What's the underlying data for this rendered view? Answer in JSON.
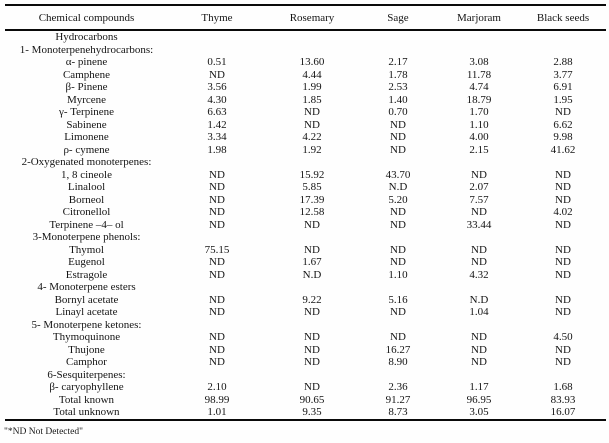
{
  "table": {
    "columns": [
      "Chemical compounds",
      "Thyme",
      "Rosemary",
      "Sage",
      "Marjoram",
      "Black seeds"
    ],
    "rows": [
      {
        "type": "section",
        "label": "Hydrocarbons"
      },
      {
        "type": "section",
        "label": "1- Monoterpenehydrocarbons:"
      },
      {
        "type": "compound",
        "label": "α- pinene",
        "values": [
          "0.51",
          "13.60",
          "2.17",
          "3.08",
          "2.88"
        ]
      },
      {
        "type": "compound",
        "label": "Camphene",
        "values": [
          "ND",
          "4.44",
          "1.78",
          "11.78",
          "3.77"
        ]
      },
      {
        "type": "compound",
        "label": "β- Pinene",
        "values": [
          "3.56",
          "1.99",
          "2.53",
          "4.74",
          "6.91"
        ]
      },
      {
        "type": "compound",
        "label": "Myrcene",
        "values": [
          "4.30",
          "1.85",
          "1.40",
          "18.79",
          "1.95"
        ]
      },
      {
        "type": "compound",
        "label": "γ- Terpinene",
        "values": [
          "6.63",
          "ND",
          "0.70",
          "1.70",
          "ND"
        ]
      },
      {
        "type": "compound",
        "label": "Sabinene",
        "values": [
          "1.42",
          "ND",
          "ND",
          "1.10",
          "6.62"
        ]
      },
      {
        "type": "compound",
        "label": "Limonene",
        "values": [
          "3.34",
          "4.22",
          "ND",
          "4.00",
          "9.98"
        ]
      },
      {
        "type": "compound",
        "label": "ρ- cymene",
        "values": [
          "1.98",
          "1.92",
          "ND",
          "2.15",
          "41.62"
        ]
      },
      {
        "type": "section",
        "label": "2-Oxygenated monoterpenes:"
      },
      {
        "type": "compound",
        "label": "1, 8 cineole",
        "values": [
          "ND",
          "15.92",
          "43.70",
          "ND",
          "ND"
        ]
      },
      {
        "type": "compound",
        "label": "Linalool",
        "values": [
          "ND",
          "5.85",
          "N.D",
          "2.07",
          "ND"
        ]
      },
      {
        "type": "compound",
        "label": "Borneol",
        "values": [
          "ND",
          "17.39",
          "5.20",
          "7.57",
          "ND"
        ]
      },
      {
        "type": "compound",
        "label": "Citronellol",
        "values": [
          "ND",
          "12.58",
          "ND",
          "ND",
          "4.02"
        ]
      },
      {
        "type": "compound",
        "label": "Terpinene –4– ol",
        "values": [
          "ND",
          "ND",
          "ND",
          "33.44",
          "ND"
        ]
      },
      {
        "type": "section",
        "label": "3-Monoterpene phenols:"
      },
      {
        "type": "compound",
        "label": "Thymol",
        "values": [
          "75.15",
          "ND",
          "ND",
          "ND",
          "ND"
        ]
      },
      {
        "type": "compound",
        "label": "Eugenol",
        "values": [
          "ND",
          "1.67",
          "ND",
          "ND",
          "ND"
        ]
      },
      {
        "type": "compound",
        "label": "Estragole",
        "values": [
          "ND",
          "N.D",
          "1.10",
          "4.32",
          "ND"
        ]
      },
      {
        "type": "section",
        "label": "4- Monoterpene esters"
      },
      {
        "type": "compound",
        "label": "Bornyl acetate",
        "values": [
          "ND",
          "9.22",
          "5.16",
          "N.D",
          "ND"
        ]
      },
      {
        "type": "compound",
        "label": "Linayl acetate",
        "values": [
          "ND",
          "ND",
          "ND",
          "1.04",
          "ND"
        ]
      },
      {
        "type": "section",
        "label": "5- Monoterpene ketones:"
      },
      {
        "type": "compound",
        "label": "Thymoquinone",
        "values": [
          "ND",
          "ND",
          "ND",
          "ND",
          "4.50"
        ]
      },
      {
        "type": "compound",
        "label": "Thujone",
        "values": [
          "ND",
          "ND",
          "16.27",
          "ND",
          "ND"
        ]
      },
      {
        "type": "compound",
        "label": "Camphor",
        "values": [
          "ND",
          "ND",
          "8.90",
          "ND",
          "ND"
        ]
      },
      {
        "type": "section",
        "label": "6-Sesquiterpenes:"
      },
      {
        "type": "compound",
        "label": "β- caryophyllene",
        "values": [
          "2.10",
          "ND",
          "2.36",
          "1.17",
          "1.68"
        ]
      },
      {
        "type": "compound",
        "label": "Total known",
        "values": [
          "98.99",
          "90.65",
          "91.27",
          "96.95",
          "83.93"
        ]
      },
      {
        "type": "compound",
        "label": "Total unknown",
        "values": [
          "1.01",
          "9.35",
          "8.73",
          "3.05",
          "16.07"
        ]
      }
    ],
    "footnote": "\"*ND Not Detected\""
  }
}
